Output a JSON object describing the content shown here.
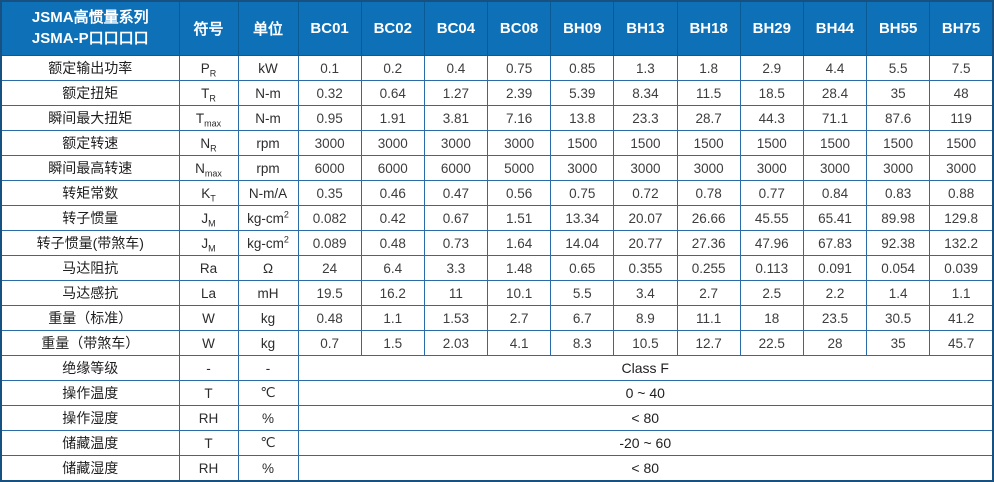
{
  "table": {
    "header": {
      "series_title_line1": "JSMA高惯量系列",
      "series_title_line2": "JSMA-P口口口口",
      "symbol_col": "符号",
      "unit_col": "单位",
      "models": [
        "BC01",
        "BC02",
        "BC04",
        "BC08",
        "BH09",
        "BH13",
        "BH18",
        "BH29",
        "BH44",
        "BH55",
        "BH75"
      ]
    },
    "rows": [
      {
        "label": "额定输出功率",
        "symbol": "P",
        "symbol_sub": "R",
        "unit": "kW",
        "values": [
          "0.1",
          "0.2",
          "0.4",
          "0.75",
          "0.85",
          "1.3",
          "1.8",
          "2.9",
          "4.4",
          "5.5",
          "7.5"
        ]
      },
      {
        "label": "额定扭矩",
        "symbol": "T",
        "symbol_sub": "R",
        "unit": "N-m",
        "values": [
          "0.32",
          "0.64",
          "1.27",
          "2.39",
          "5.39",
          "8.34",
          "11.5",
          "18.5",
          "28.4",
          "35",
          "48"
        ]
      },
      {
        "label": "瞬间最大扭矩",
        "symbol": "T",
        "symbol_sub": "max",
        "unit": "N-m",
        "values": [
          "0.95",
          "1.91",
          "3.81",
          "7.16",
          "13.8",
          "23.3",
          "28.7",
          "44.3",
          "71.1",
          "87.6",
          "119"
        ]
      },
      {
        "label": "额定转速",
        "symbol": "N",
        "symbol_sub": "R",
        "unit": "rpm",
        "values": [
          "3000",
          "3000",
          "3000",
          "3000",
          "1500",
          "1500",
          "1500",
          "1500",
          "1500",
          "1500",
          "1500"
        ]
      },
      {
        "label": "瞬间最高转速",
        "symbol": "N",
        "symbol_sub": "max",
        "unit": "rpm",
        "values": [
          "6000",
          "6000",
          "6000",
          "5000",
          "3000",
          "3000",
          "3000",
          "3000",
          "3000",
          "3000",
          "3000"
        ]
      },
      {
        "label": "转矩常数",
        "symbol": "K",
        "symbol_sub": "T",
        "unit": "N-m/A",
        "values": [
          "0.35",
          "0.46",
          "0.47",
          "0.56",
          "0.75",
          "0.72",
          "0.78",
          "0.77",
          "0.84",
          "0.83",
          "0.88"
        ]
      },
      {
        "label": "转子惯量",
        "symbol": "J",
        "symbol_sub": "M",
        "unit": "kg-cm",
        "unit_sup": "2",
        "values": [
          "0.082",
          "0.42",
          "0.67",
          "1.51",
          "13.34",
          "20.07",
          "26.66",
          "45.55",
          "65.41",
          "89.98",
          "129.8"
        ]
      },
      {
        "label": "转子惯量(带煞车)",
        "symbol": "J",
        "symbol_sub": "M",
        "unit": "kg-cm",
        "unit_sup": "2",
        "values": [
          "0.089",
          "0.48",
          "0.73",
          "1.64",
          "14.04",
          "20.77",
          "27.36",
          "47.96",
          "67.83",
          "92.38",
          "132.2"
        ]
      },
      {
        "label": "马达阻抗",
        "symbol": "Ra",
        "unit": "Ω",
        "values": [
          "24",
          "6.4",
          "3.3",
          "1.48",
          "0.65",
          "0.355",
          "0.255",
          "0.113",
          "0.091",
          "0.054",
          "0.039"
        ]
      },
      {
        "label": "马达感抗",
        "symbol": "La",
        "unit": "mH",
        "values": [
          "19.5",
          "16.2",
          "11",
          "10.1",
          "5.5",
          "3.4",
          "2.7",
          "2.5",
          "2.2",
          "1.4",
          "1.1"
        ]
      },
      {
        "label": "重量（标准）",
        "symbol": "W",
        "unit": "kg",
        "values": [
          "0.48",
          "1.1",
          "1.53",
          "2.7",
          "6.7",
          "8.9",
          "11.1",
          "18",
          "23.5",
          "30.5",
          "41.2"
        ]
      },
      {
        "label": "重量（带煞车）",
        "symbol": "W",
        "unit": "kg",
        "values": [
          "0.7",
          "1.5",
          "2.03",
          "4.1",
          "8.3",
          "10.5",
          "12.7",
          "22.5",
          "28",
          "35",
          "45.7"
        ]
      },
      {
        "label": "绝缘等级",
        "symbol": "-",
        "unit": "-",
        "merged_value": "Class F"
      },
      {
        "label": "操作温度",
        "symbol": "T",
        "unit": "℃",
        "merged_value": "0 ~ 40"
      },
      {
        "label": "操作湿度",
        "symbol": "RH",
        "unit": "%",
        "merged_value": "< 80"
      },
      {
        "label": "储藏温度",
        "symbol": "T",
        "unit": "℃",
        "merged_value": "-20 ~ 60"
      },
      {
        "label": "储藏湿度",
        "symbol": "RH",
        "unit": "%",
        "merged_value": "< 80"
      }
    ],
    "colors": {
      "header_bg": "#0e71b8",
      "header_divider": "#0a5a96",
      "grid_line": "#2b6ca8",
      "outer_border": "#175181",
      "header_text": "#ffffff",
      "body_text": "#3d3d3d"
    }
  }
}
